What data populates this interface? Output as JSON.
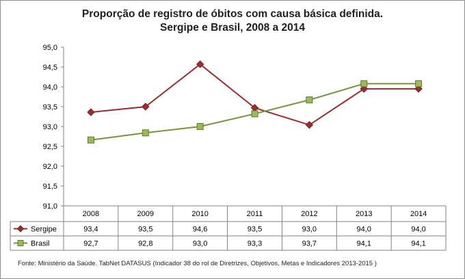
{
  "chart_data": {
    "type": "line",
    "title_line1": "Proporção de registro de óbitos com causa básica definida.",
    "title_line2": "Sergipe e Brasil, 2008 a 2014",
    "categories": [
      "2008",
      "2009",
      "2010",
      "2011",
      "2012",
      "2013",
      "2014"
    ],
    "y_ticks": [
      "95,0",
      "94,5",
      "94,0",
      "93,5",
      "93,0",
      "92,5",
      "92,0",
      "91,5",
      "91,0"
    ],
    "ylim": [
      91.0,
      95.0
    ],
    "grid": false,
    "legend": "data-table",
    "series": [
      {
        "name": "Sergipe",
        "color": "#9b2d2d",
        "marker": "diamond",
        "values": [
          93.36,
          93.5,
          94.57,
          93.47,
          93.04,
          93.95,
          93.95
        ],
        "labels": [
          "93,4",
          "93,5",
          "94,6",
          "93,5",
          "93,0",
          "94,0",
          "94,0"
        ]
      },
      {
        "name": "Brasil",
        "color": "#77933c",
        "marker": "square",
        "values": [
          92.66,
          92.84,
          93.0,
          93.32,
          93.67,
          94.08,
          94.08
        ],
        "labels": [
          "92,7",
          "92,8",
          "93,0",
          "93,3",
          "93,7",
          "94,1",
          "94,1"
        ]
      }
    ]
  },
  "footer": "Fonte: Ministério da Saúde. TabNet DATASUS (Indicador 38 do rol de Diretrizes, Objetivos, Metas e Indicadores 2013-2015 )"
}
